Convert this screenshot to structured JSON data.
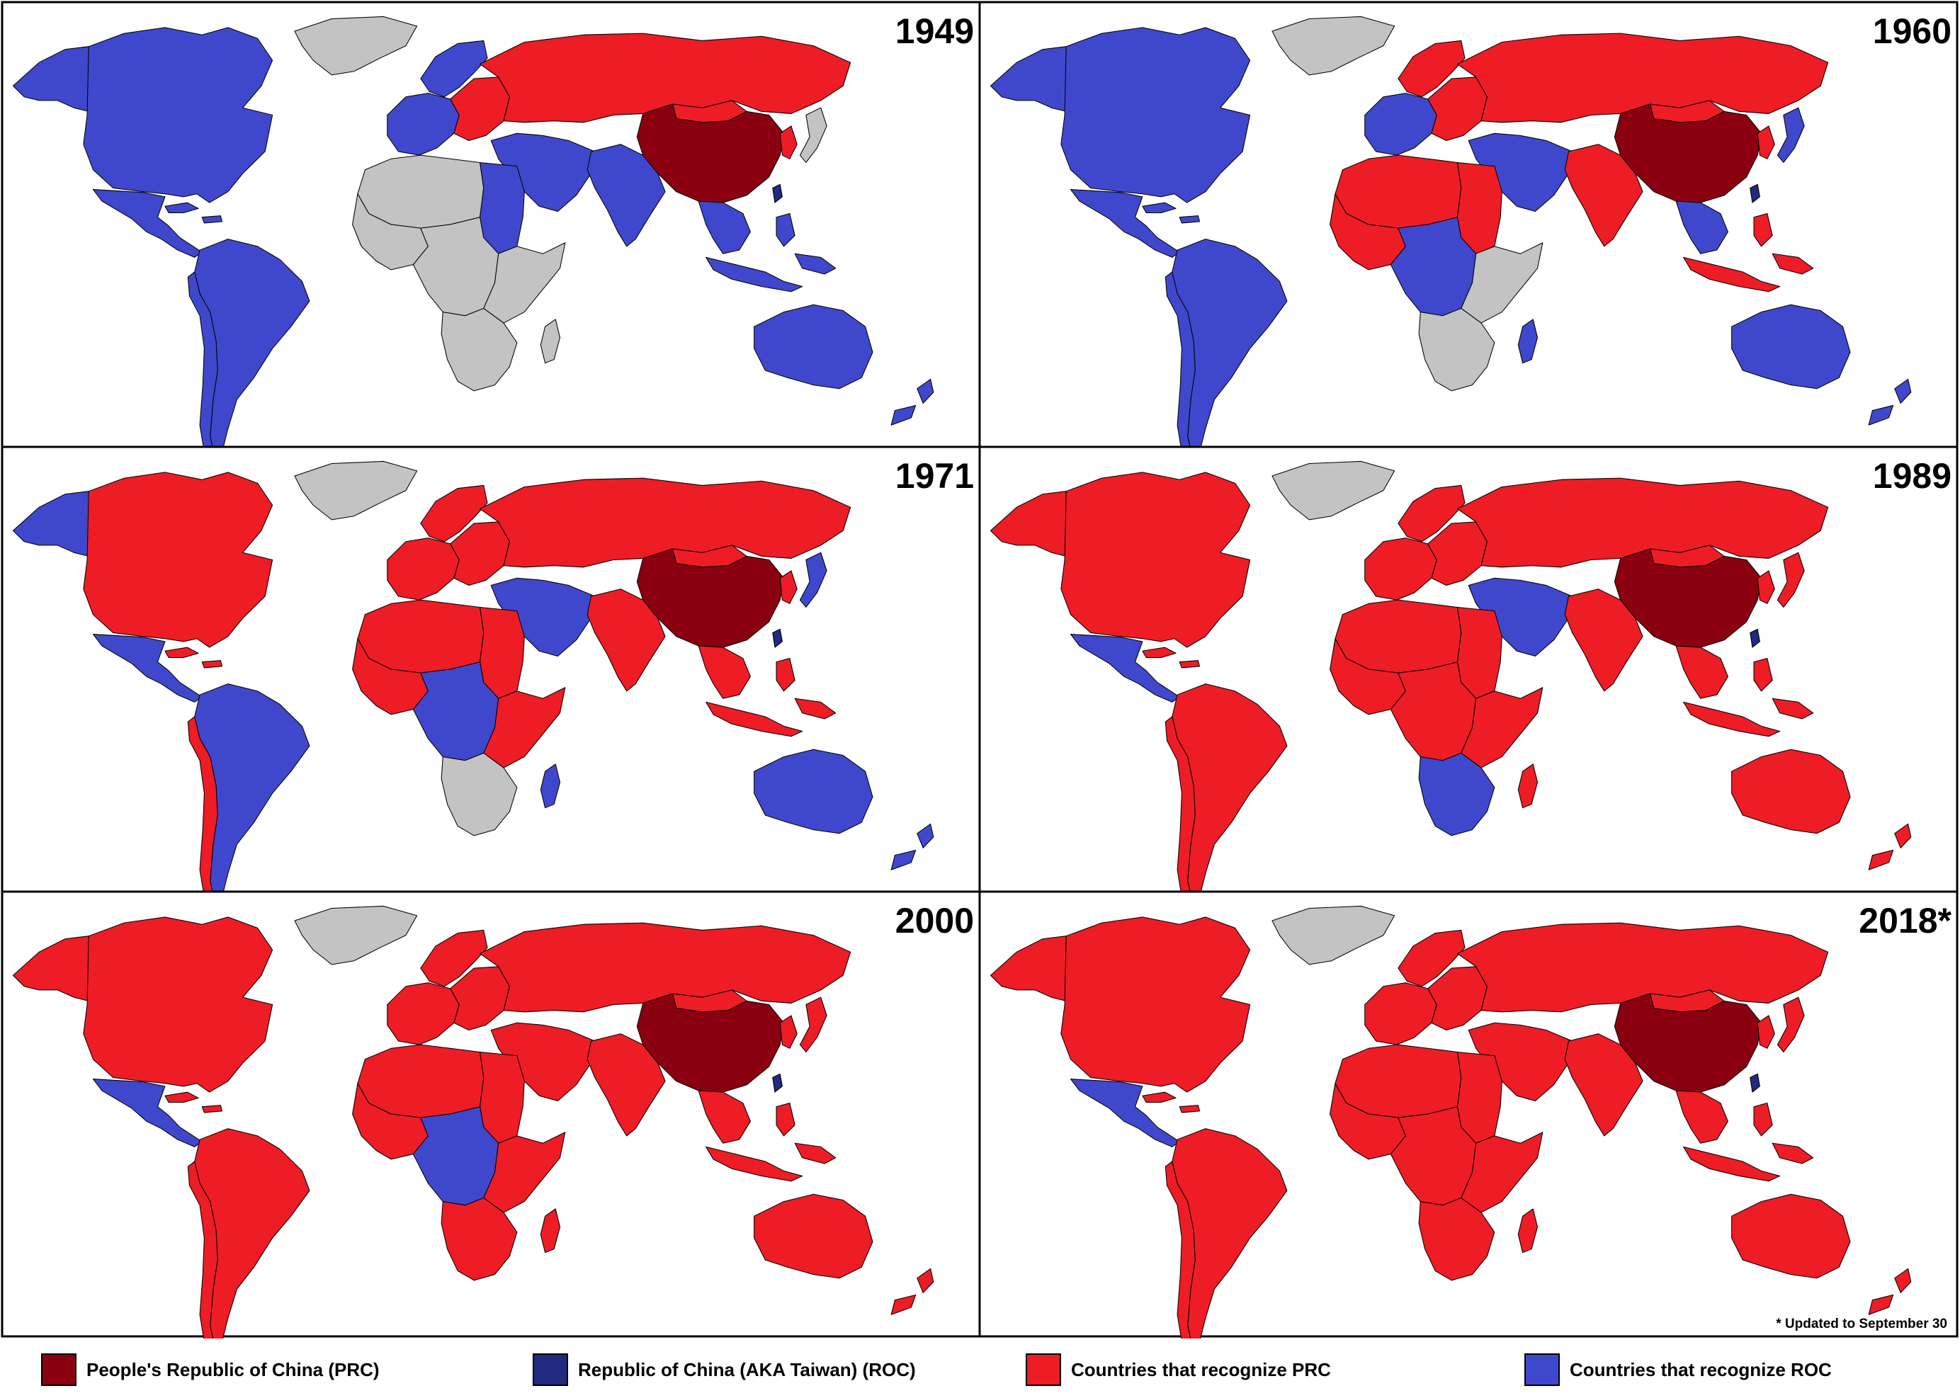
{
  "colors": {
    "prc": "#8b0010",
    "roc": "#1f2a80",
    "recognize_prc": "#ee1c25",
    "recognize_roc": "#3f48cc",
    "neither": "#c3c3c3",
    "border": "#000000"
  },
  "panels": [
    {
      "year": "1949",
      "regions": {
        "north_america": "recognize_roc",
        "alaska": "recognize_roc",
        "greenland": "neither",
        "central_america": "recognize_roc",
        "caribbean": "recognize_roc",
        "south_america": "recognize_roc",
        "south_america_west": "recognize_roc",
        "western_europe": "recognize_roc",
        "scandinavia": "recognize_roc",
        "eastern_europe": "recognize_prc",
        "russia": "recognize_prc",
        "middle_east": "recognize_roc",
        "africa_north": "neither",
        "egypt": "recognize_roc",
        "africa_west": "neither",
        "africa_central": "neither",
        "africa_east": "neither",
        "africa_south": "neither",
        "madagascar": "neither",
        "india": "recognize_roc",
        "china": "prc",
        "mongolia": "recognize_prc",
        "korea": "recognize_prc",
        "japan": "neither",
        "taiwan": "roc",
        "southeast_asia": "recognize_roc",
        "indonesia": "recognize_roc",
        "australia": "recognize_roc",
        "new_zealand": "recognize_roc"
      }
    },
    {
      "year": "1960",
      "regions": {
        "north_america": "recognize_roc",
        "alaska": "recognize_roc",
        "greenland": "neither",
        "central_america": "recognize_roc",
        "caribbean": "recognize_roc",
        "south_america": "recognize_roc",
        "south_america_west": "recognize_roc",
        "western_europe": "recognize_roc",
        "scandinavia": "recognize_prc",
        "eastern_europe": "recognize_prc",
        "russia": "recognize_prc",
        "middle_east": "recognize_roc",
        "africa_north": "recognize_prc",
        "egypt": "recognize_prc",
        "africa_west": "recognize_prc",
        "africa_central": "recognize_roc",
        "africa_east": "neither",
        "africa_south": "neither",
        "madagascar": "recognize_roc",
        "india": "recognize_prc",
        "china": "prc",
        "mongolia": "recognize_prc",
        "korea": "recognize_prc",
        "japan": "recognize_roc",
        "taiwan": "roc",
        "southeast_asia": "recognize_roc",
        "indonesia": "recognize_prc",
        "australia": "recognize_roc",
        "new_zealand": "recognize_roc"
      }
    },
    {
      "year": "1971",
      "regions": {
        "north_america": "recognize_prc",
        "alaska": "recognize_roc",
        "greenland": "neither",
        "central_america": "recognize_roc",
        "caribbean": "recognize_prc",
        "south_america": "recognize_roc",
        "south_america_west": "recognize_prc",
        "western_europe": "recognize_prc",
        "scandinavia": "recognize_prc",
        "eastern_europe": "recognize_prc",
        "russia": "recognize_prc",
        "middle_east": "recognize_roc",
        "africa_north": "recognize_prc",
        "egypt": "recognize_prc",
        "africa_west": "recognize_prc",
        "africa_central": "recognize_roc",
        "africa_east": "recognize_prc",
        "africa_south": "neither",
        "madagascar": "recognize_roc",
        "india": "recognize_prc",
        "china": "prc",
        "mongolia": "recognize_prc",
        "korea": "recognize_prc",
        "japan": "recognize_roc",
        "taiwan": "roc",
        "southeast_asia": "recognize_prc",
        "indonesia": "recognize_prc",
        "australia": "recognize_roc",
        "new_zealand": "recognize_roc"
      }
    },
    {
      "year": "1989",
      "regions": {
        "north_america": "recognize_prc",
        "alaska": "recognize_prc",
        "greenland": "neither",
        "central_america": "recognize_roc",
        "caribbean": "recognize_prc",
        "south_america": "recognize_prc",
        "south_america_west": "recognize_prc",
        "western_europe": "recognize_prc",
        "scandinavia": "recognize_prc",
        "eastern_europe": "recognize_prc",
        "russia": "recognize_prc",
        "middle_east": "recognize_roc",
        "africa_north": "recognize_prc",
        "egypt": "recognize_prc",
        "africa_west": "recognize_prc",
        "africa_central": "recognize_prc",
        "africa_east": "recognize_prc",
        "africa_south": "recognize_roc",
        "madagascar": "recognize_prc",
        "india": "recognize_prc",
        "china": "prc",
        "mongolia": "recognize_prc",
        "korea": "recognize_prc",
        "japan": "recognize_prc",
        "taiwan": "roc",
        "southeast_asia": "recognize_prc",
        "indonesia": "recognize_prc",
        "australia": "recognize_prc",
        "new_zealand": "recognize_prc"
      }
    },
    {
      "year": "2000",
      "regions": {
        "north_america": "recognize_prc",
        "alaska": "recognize_prc",
        "greenland": "neither",
        "central_america": "recognize_roc",
        "caribbean": "recognize_prc",
        "south_america": "recognize_prc",
        "south_america_west": "recognize_prc",
        "western_europe": "recognize_prc",
        "scandinavia": "recognize_prc",
        "eastern_europe": "recognize_prc",
        "russia": "recognize_prc",
        "middle_east": "recognize_prc",
        "africa_north": "recognize_prc",
        "egypt": "recognize_prc",
        "africa_west": "recognize_prc",
        "africa_central": "recognize_roc",
        "africa_east": "recognize_prc",
        "africa_south": "recognize_prc",
        "madagascar": "recognize_prc",
        "india": "recognize_prc",
        "china": "prc",
        "mongolia": "recognize_prc",
        "korea": "recognize_prc",
        "japan": "recognize_prc",
        "taiwan": "roc",
        "southeast_asia": "recognize_prc",
        "indonesia": "recognize_prc",
        "australia": "recognize_prc",
        "new_zealand": "recognize_prc"
      }
    },
    {
      "year": "2018*",
      "regions": {
        "north_america": "recognize_prc",
        "alaska": "recognize_prc",
        "greenland": "neither",
        "central_america": "recognize_roc",
        "caribbean": "recognize_prc",
        "south_america": "recognize_prc",
        "south_america_west": "recognize_prc",
        "western_europe": "recognize_prc",
        "scandinavia": "recognize_prc",
        "eastern_europe": "recognize_prc",
        "russia": "recognize_prc",
        "middle_east": "recognize_prc",
        "africa_north": "recognize_prc",
        "egypt": "recognize_prc",
        "africa_west": "recognize_prc",
        "africa_central": "recognize_prc",
        "africa_east": "recognize_prc",
        "africa_south": "recognize_prc",
        "madagascar": "recognize_prc",
        "india": "recognize_prc",
        "china": "prc",
        "mongolia": "recognize_prc",
        "korea": "recognize_prc",
        "japan": "recognize_prc",
        "taiwan": "roc",
        "southeast_asia": "recognize_prc",
        "indonesia": "recognize_prc",
        "australia": "recognize_prc",
        "new_zealand": "recognize_prc"
      }
    }
  ],
  "footnote": "* Updated to September 30",
  "legend": [
    {
      "key": "prc",
      "label": "People's Republic of China (PRC)"
    },
    {
      "key": "roc",
      "label": "Republic of China (AKA Taiwan) (ROC)"
    },
    {
      "key": "recognize_prc",
      "label": "Countries that recognize PRC"
    },
    {
      "key": "recognize_roc",
      "label": "Countries that recognize ROC"
    }
  ]
}
